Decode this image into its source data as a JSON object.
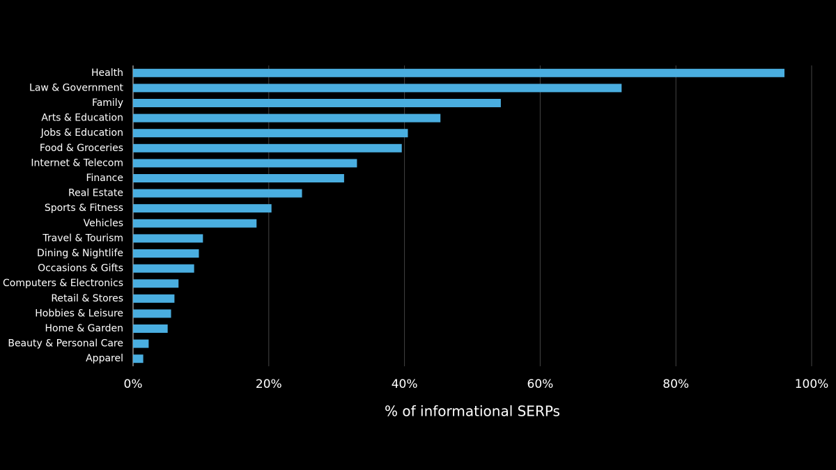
{
  "chart_data": {
    "type": "bar",
    "orientation": "horizontal",
    "x_label": "% of informational SERPs",
    "categories": [
      "Health",
      "Law & Government",
      "Family",
      "Arts & Education",
      "Jobs & Education",
      "Food & Groceries",
      "Internet & Telecom",
      "Finance",
      "Real Estate",
      "Sports & Fitness",
      "Vehicles",
      "Travel & Tourism",
      "Dining & Nightlife",
      "Occasions & Gifts",
      "Computers & Electronics",
      "Retail & Stores",
      "Hobbies & Leisure",
      "Home & Garden",
      "Beauty & Personal Care",
      "Apparel"
    ],
    "values": [
      96,
      72,
      54.2,
      45.3,
      40.5,
      39.6,
      33,
      31.1,
      24.9,
      20.4,
      18.2,
      10.3,
      9.7,
      9,
      6.7,
      6.1,
      5.6,
      5.1,
      2.3,
      1.5
    ],
    "color": "#4aaee0",
    "xlim": [
      0,
      100
    ],
    "xticks": [
      {
        "value": 0,
        "label": "0%"
      },
      {
        "value": 20,
        "label": "20%"
      },
      {
        "value": 40,
        "label": "40%"
      },
      {
        "value": 60,
        "label": "60%"
      },
      {
        "value": 80,
        "label": "80%"
      },
      {
        "value": 100,
        "label": "100%"
      }
    ],
    "grid": true
  }
}
